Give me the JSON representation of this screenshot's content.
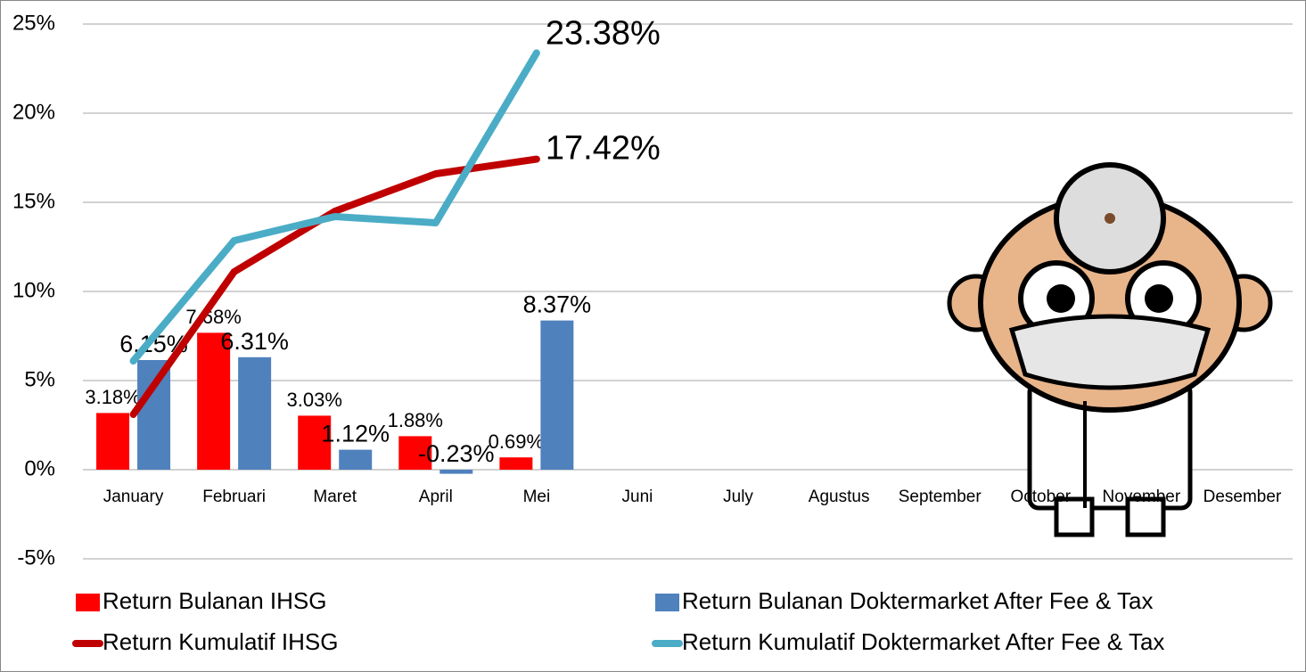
{
  "chart_data": {
    "type": "bar",
    "categories": [
      "January",
      "Februari",
      "Maret",
      "April",
      "Mei",
      "Juni",
      "July",
      "Agustus",
      "September",
      "October",
      "November",
      "Desember"
    ],
    "series": [
      {
        "name": "Return Bulanan IHSG",
        "type": "bar",
        "color": "#ff0000",
        "values": [
          3.18,
          7.68,
          3.03,
          1.88,
          0.69,
          null,
          null,
          null,
          null,
          null,
          null,
          null
        ],
        "value_labels": [
          "3.18%",
          "7.68%",
          "3.03%",
          "1.88%",
          "0.69%",
          null,
          null,
          null,
          null,
          null,
          null,
          null
        ]
      },
      {
        "name": "Return Bulanan Doktermarket After Fee & Tax",
        "type": "bar",
        "color": "#4f81bd",
        "values": [
          6.15,
          6.31,
          1.12,
          -0.23,
          8.37,
          null,
          null,
          null,
          null,
          null,
          null,
          null
        ],
        "value_labels": [
          "6.15%",
          "6.31%",
          "1.12%",
          "-0.23%",
          "8.37%",
          null,
          null,
          null,
          null,
          null,
          null,
          null
        ]
      },
      {
        "name": "Return Kumulatif IHSG",
        "type": "line",
        "color": "#c00000",
        "values": [
          3.1,
          11.1,
          14.5,
          16.6,
          17.42,
          null,
          null,
          null,
          null,
          null,
          null,
          null
        ],
        "value_labels": [
          null,
          null,
          null,
          null,
          "17.42%",
          null,
          null,
          null,
          null,
          null,
          null,
          null
        ]
      },
      {
        "name": "Return Kumulatif Doktermarket After Fee & Tax",
        "type": "line",
        "color": "#4bacc6",
        "values": [
          6.1,
          12.85,
          14.2,
          13.85,
          23.38,
          null,
          null,
          null,
          null,
          null,
          null,
          null
        ],
        "value_labels": [
          null,
          null,
          null,
          null,
          "23.38%",
          null,
          null,
          null,
          null,
          null,
          null,
          null
        ]
      }
    ],
    "ylim": [
      -5,
      25
    ],
    "yticks": [
      {
        "value": -5,
        "label": "-5%"
      },
      {
        "value": 0,
        "label": "0%"
      },
      {
        "value": 5,
        "label": "5%"
      },
      {
        "value": 10,
        "label": "10%"
      },
      {
        "value": 15,
        "label": "15%"
      },
      {
        "value": 20,
        "label": "20%"
      },
      {
        "value": 25,
        "label": "25%"
      }
    ],
    "grid": true,
    "legend": "bottom"
  }
}
